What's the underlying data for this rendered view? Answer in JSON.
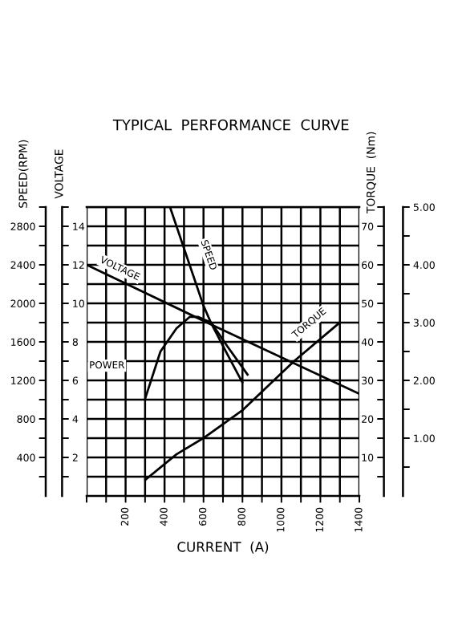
{
  "chart_data": [
    {
      "type": "line",
      "title": "TYPICAL  PERFORMANCE  CURVE",
      "xlabel": "CURRENT  (A)",
      "ylabel": "SPEED(RPM)",
      "y2label": "VOLTAGE",
      "y3label": "TORQUE  (Nm)",
      "xlim": [
        0,
        1400
      ],
      "xticks": [
        {
          "value": 0,
          "label": null
        },
        {
          "value": 100,
          "label": null
        },
        200,
        {
          "value": 300,
          "label": null
        },
        400,
        {
          "value": 500,
          "label": null
        },
        600,
        {
          "value": 700,
          "label": null
        },
        800,
        {
          "value": 900,
          "label": null
        },
        1000,
        {
          "value": 1100,
          "label": null
        },
        1200,
        {
          "value": 1300,
          "label": null
        },
        1400
      ],
      "ylim": [
        0,
        3000
      ],
      "yticks": [
        {
          "value": 200,
          "label": null
        },
        400,
        {
          "value": 600,
          "label": null
        },
        800,
        {
          "value": 1000,
          "label": null
        },
        1200,
        {
          "value": 1400,
          "label": null
        },
        1600,
        {
          "value": 1800,
          "label": null
        },
        2000,
        {
          "value": 2200,
          "label": null
        },
        2400,
        {
          "value": 2600,
          "label": null
        },
        2800,
        {
          "value": 3000,
          "label": null
        }
      ],
      "y2lim": [
        0,
        15
      ],
      "y2ticks": [
        {
          "value": 1,
          "label": null
        },
        2,
        {
          "value": 3,
          "label": null
        },
        4,
        {
          "value": 5,
          "label": null
        },
        6,
        {
          "value": 7,
          "label": null
        },
        8,
        {
          "value": 9,
          "label": null
        },
        10,
        {
          "value": 11,
          "label": null
        },
        12,
        {
          "value": 13,
          "label": null
        },
        14,
        {
          "value": 15,
          "label": null
        }
      ],
      "y3lim": [
        0,
        75
      ],
      "y3ticks": [
        {
          "value": 5,
          "label": null
        },
        10,
        {
          "value": 15,
          "label": null
        },
        20,
        {
          "value": 25,
          "label": null
        },
        30,
        {
          "value": 35,
          "label": null
        },
        40,
        {
          "value": 45,
          "label": null
        },
        50,
        {
          "value": 55,
          "label": null
        },
        60,
        {
          "value": 65,
          "label": null
        },
        70,
        {
          "value": 75,
          "label": null
        }
      ],
      "grid": true,
      "series": [
        {
          "name": "SPEED",
          "color": "#000000",
          "x": [
            428,
            599,
            640,
            720,
            799
          ],
          "values": [
            3000,
            1980,
            1790,
            1480,
            1180
          ]
        },
        {
          "name": "VOLTAGE",
          "color": "#000000",
          "axis": "y2",
          "x": [
            0,
            640,
            1400
          ],
          "values": [
            12,
            8.9,
            5.3
          ]
        },
        {
          "name": "TORQUE",
          "color": "#000000",
          "axis": "y3",
          "x": [
            302,
            461,
            599,
            799,
            1065,
            1299
          ],
          "values": [
            4.2,
            10.8,
            15,
            22.2,
            35,
            45
          ]
        }
      ]
    },
    {
      "type": "line",
      "tick_labels": "y",
      "xlim": [
        0,
        1400
      ],
      "ylim": [
        0,
        5
      ],
      "yticks": [
        {
          "value": 1,
          "label": "1.00"
        },
        {
          "value": 2,
          "label": "2.00"
        },
        {
          "value": 3,
          "label": "3.00"
        },
        {
          "value": 4,
          "label": "4.00"
        },
        {
          "value": 5,
          "label": "5.00"
        }
      ],
      "series": [
        {
          "name": "POWER",
          "color": "#000000",
          "x": [
            302,
            379,
            461,
            530,
            571,
            640,
            720,
            826
          ],
          "values": [
            1.7,
            2.5,
            2.9,
            3.1,
            3.1,
            3.0,
            2.6,
            2.1
          ]
        }
      ]
    }
  ]
}
